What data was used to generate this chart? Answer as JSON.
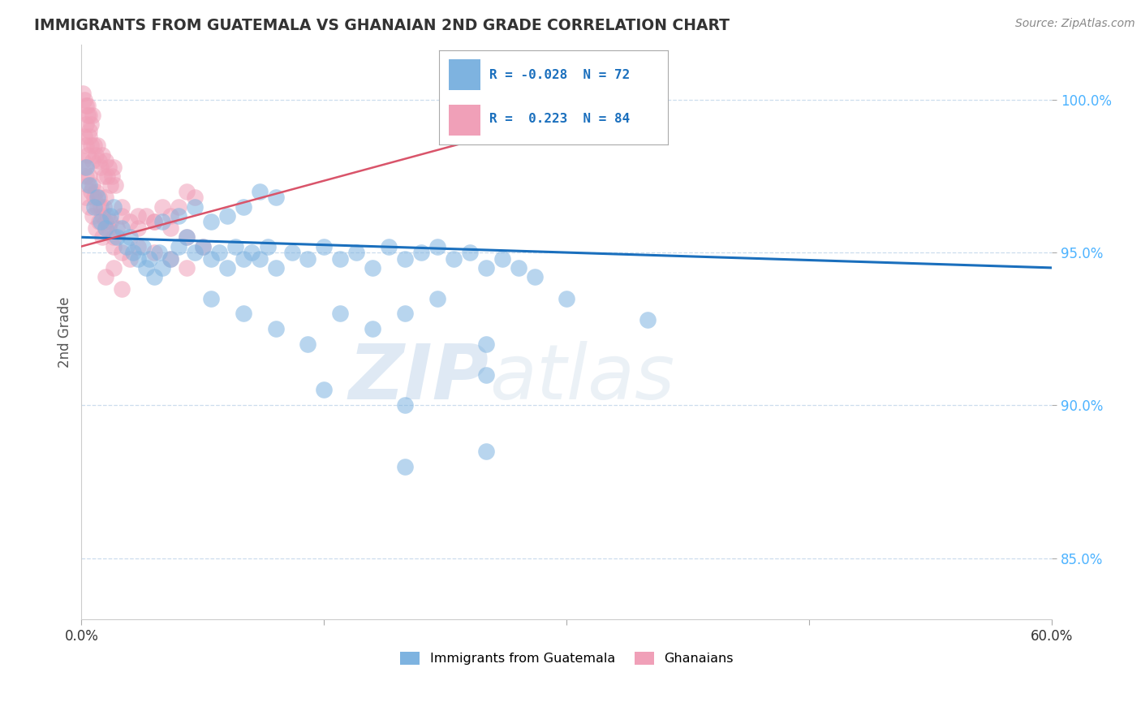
{
  "title": "IMMIGRANTS FROM GUATEMALA VS GHANAIAN 2ND GRADE CORRELATION CHART",
  "source": "Source: ZipAtlas.com",
  "ylabel": "2nd Grade",
  "xlim": [
    0.0,
    60.0
  ],
  "ylim": [
    83.0,
    101.8
  ],
  "yticks": [
    85.0,
    90.0,
    95.0,
    100.0
  ],
  "blue_color": "#7eb3e0",
  "pink_color": "#f0a0b8",
  "trend_blue": "#1a6fbd",
  "trend_pink": "#d9546a",
  "watermark": "ZIPatlas",
  "blue_scatter": [
    [
      0.3,
      97.8
    ],
    [
      0.5,
      97.2
    ],
    [
      0.8,
      96.5
    ],
    [
      1.0,
      96.8
    ],
    [
      1.2,
      96.0
    ],
    [
      1.5,
      95.8
    ],
    [
      1.8,
      96.2
    ],
    [
      2.0,
      96.5
    ],
    [
      2.2,
      95.5
    ],
    [
      2.5,
      95.8
    ],
    [
      2.8,
      95.2
    ],
    [
      3.0,
      95.5
    ],
    [
      3.2,
      95.0
    ],
    [
      3.5,
      94.8
    ],
    [
      3.8,
      95.2
    ],
    [
      4.0,
      94.5
    ],
    [
      4.2,
      94.8
    ],
    [
      4.5,
      94.2
    ],
    [
      4.8,
      95.0
    ],
    [
      5.0,
      94.5
    ],
    [
      5.5,
      94.8
    ],
    [
      6.0,
      95.2
    ],
    [
      6.5,
      95.5
    ],
    [
      7.0,
      95.0
    ],
    [
      7.5,
      95.2
    ],
    [
      8.0,
      94.8
    ],
    [
      8.5,
      95.0
    ],
    [
      9.0,
      94.5
    ],
    [
      9.5,
      95.2
    ],
    [
      10.0,
      94.8
    ],
    [
      10.5,
      95.0
    ],
    [
      11.0,
      94.8
    ],
    [
      11.5,
      95.2
    ],
    [
      12.0,
      94.5
    ],
    [
      13.0,
      95.0
    ],
    [
      14.0,
      94.8
    ],
    [
      15.0,
      95.2
    ],
    [
      16.0,
      94.8
    ],
    [
      17.0,
      95.0
    ],
    [
      18.0,
      94.5
    ],
    [
      19.0,
      95.2
    ],
    [
      20.0,
      94.8
    ],
    [
      21.0,
      95.0
    ],
    [
      22.0,
      95.2
    ],
    [
      23.0,
      94.8
    ],
    [
      24.0,
      95.0
    ],
    [
      25.0,
      94.5
    ],
    [
      26.0,
      94.8
    ],
    [
      27.0,
      94.5
    ],
    [
      28.0,
      94.2
    ],
    [
      5.0,
      96.0
    ],
    [
      6.0,
      96.2
    ],
    [
      7.0,
      96.5
    ],
    [
      8.0,
      96.0
    ],
    [
      9.0,
      96.2
    ],
    [
      10.0,
      96.5
    ],
    [
      11.0,
      97.0
    ],
    [
      12.0,
      96.8
    ],
    [
      8.0,
      93.5
    ],
    [
      10.0,
      93.0
    ],
    [
      12.0,
      92.5
    ],
    [
      14.0,
      92.0
    ],
    [
      16.0,
      93.0
    ],
    [
      18.0,
      92.5
    ],
    [
      20.0,
      93.0
    ],
    [
      22.0,
      93.5
    ],
    [
      25.0,
      92.0
    ],
    [
      30.0,
      93.5
    ],
    [
      35.0,
      92.8
    ],
    [
      15.0,
      90.5
    ],
    [
      20.0,
      90.0
    ],
    [
      25.0,
      91.0
    ],
    [
      20.0,
      88.0
    ],
    [
      25.0,
      88.5
    ]
  ],
  "pink_scatter": [
    [
      0.1,
      100.2
    ],
    [
      0.2,
      100.0
    ],
    [
      0.3,
      99.8
    ],
    [
      0.4,
      99.5
    ],
    [
      0.3,
      99.2
    ],
    [
      0.5,
      99.5
    ],
    [
      0.4,
      99.8
    ],
    [
      0.6,
      99.2
    ],
    [
      0.5,
      99.0
    ],
    [
      0.7,
      99.5
    ],
    [
      0.2,
      98.8
    ],
    [
      0.3,
      98.5
    ],
    [
      0.4,
      98.2
    ],
    [
      0.5,
      98.8
    ],
    [
      0.6,
      98.5
    ],
    [
      0.7,
      98.0
    ],
    [
      0.8,
      98.5
    ],
    [
      0.9,
      98.2
    ],
    [
      1.0,
      98.5
    ],
    [
      1.1,
      98.0
    ],
    [
      1.2,
      97.8
    ],
    [
      1.3,
      98.2
    ],
    [
      1.4,
      97.5
    ],
    [
      1.5,
      98.0
    ],
    [
      1.6,
      97.5
    ],
    [
      1.7,
      97.8
    ],
    [
      1.8,
      97.2
    ],
    [
      1.9,
      97.5
    ],
    [
      2.0,
      97.8
    ],
    [
      2.1,
      97.2
    ],
    [
      0.1,
      98.0
    ],
    [
      0.2,
      97.8
    ],
    [
      0.3,
      97.5
    ],
    [
      0.4,
      97.2
    ],
    [
      0.5,
      97.5
    ],
    [
      0.6,
      97.0
    ],
    [
      0.7,
      97.2
    ],
    [
      0.8,
      96.8
    ],
    [
      0.9,
      97.0
    ],
    [
      1.0,
      96.5
    ],
    [
      1.1,
      96.8
    ],
    [
      1.2,
      96.5
    ],
    [
      1.3,
      96.2
    ],
    [
      1.4,
      96.5
    ],
    [
      1.5,
      96.0
    ],
    [
      1.6,
      96.2
    ],
    [
      1.7,
      95.8
    ],
    [
      1.8,
      96.0
    ],
    [
      2.0,
      95.5
    ],
    [
      2.2,
      95.8
    ],
    [
      2.5,
      96.2
    ],
    [
      3.0,
      96.0
    ],
    [
      3.5,
      95.8
    ],
    [
      4.0,
      96.2
    ],
    [
      4.5,
      96.0
    ],
    [
      5.0,
      96.5
    ],
    [
      5.5,
      96.2
    ],
    [
      6.0,
      96.5
    ],
    [
      6.5,
      97.0
    ],
    [
      7.0,
      96.8
    ],
    [
      0.3,
      96.8
    ],
    [
      0.5,
      96.5
    ],
    [
      0.7,
      96.2
    ],
    [
      0.9,
      95.8
    ],
    [
      1.1,
      96.0
    ],
    [
      1.3,
      95.5
    ],
    [
      1.5,
      95.8
    ],
    [
      2.0,
      95.2
    ],
    [
      2.5,
      95.0
    ],
    [
      3.0,
      94.8
    ],
    [
      2.0,
      94.5
    ],
    [
      3.5,
      95.2
    ],
    [
      4.5,
      95.0
    ],
    [
      5.5,
      94.8
    ],
    [
      6.5,
      94.5
    ],
    [
      1.5,
      94.2
    ],
    [
      2.5,
      93.8
    ],
    [
      1.5,
      96.8
    ],
    [
      2.5,
      96.5
    ],
    [
      3.5,
      96.2
    ],
    [
      4.5,
      96.0
    ],
    [
      5.5,
      95.8
    ],
    [
      6.5,
      95.5
    ],
    [
      7.5,
      95.2
    ]
  ],
  "blue_trend_x": [
    0.0,
    60.0
  ],
  "blue_trend_y": [
    95.5,
    94.5
  ],
  "pink_trend_x": [
    0.0,
    30.0
  ],
  "pink_trend_y": [
    95.2,
    99.5
  ]
}
